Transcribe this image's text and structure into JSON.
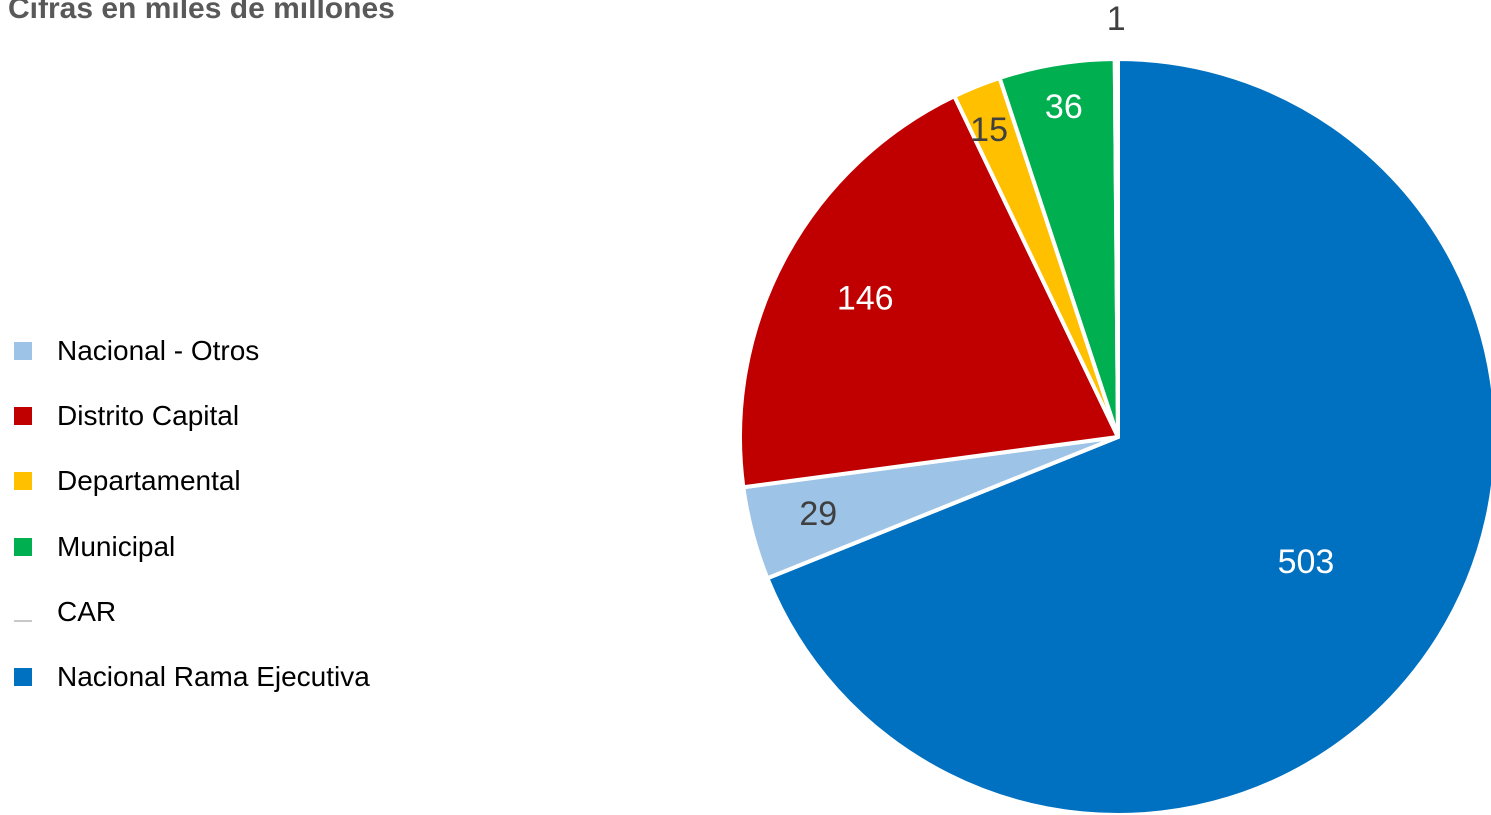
{
  "chart_data": {
    "type": "pie",
    "title": "Cifras en miles de millones",
    "legend_position": "left",
    "slices": [
      {
        "name": "Nacional Rama Ejecutiva",
        "value": 503,
        "color": "#0070C0",
        "label_color": "#ffffff"
      },
      {
        "name": "Nacional - Otros",
        "value": 29,
        "color": "#9DC3E6",
        "label_color": "#404040"
      },
      {
        "name": "Distrito Capital",
        "value": 146,
        "color": "#C00000",
        "label_color": "#ffffff"
      },
      {
        "name": "Departamental",
        "value": 15,
        "color": "#FFC000",
        "label_color": "#404040"
      },
      {
        "name": "Municipal",
        "value": 36,
        "color": "#00B050",
        "label_color": "#ffffff"
      },
      {
        "name": "CAR",
        "value": 1,
        "color": "#ffffff",
        "label_color": "#404040"
      }
    ],
    "legend_order": [
      "Nacional - Otros",
      "Distrito Capital",
      "Departamental",
      "Municipal",
      "CAR",
      "Nacional Rama Ejecutiva"
    ]
  }
}
